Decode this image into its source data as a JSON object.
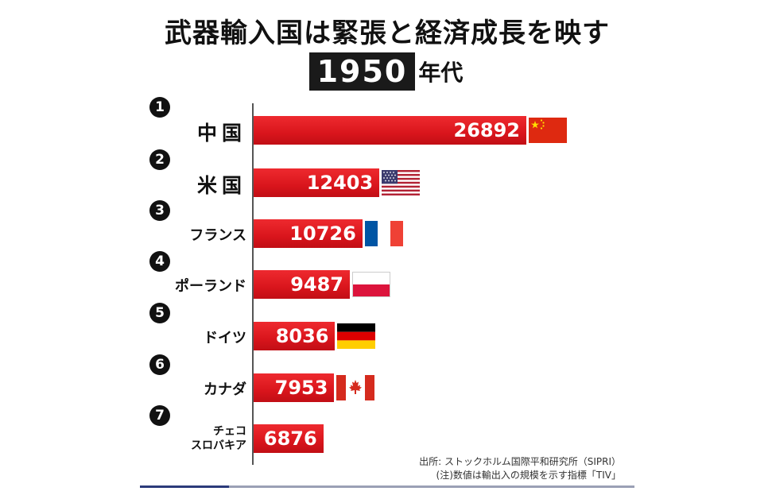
{
  "title": "武器輸入国は緊張と経済成長を映す",
  "decade": {
    "year": "1950",
    "suffix": "年代"
  },
  "colors": {
    "bar": "#d9151c",
    "rank_badge": "#111111",
    "decade_box": "#1a1a1a"
  },
  "chart_data": {
    "type": "bar",
    "orientation": "horizontal",
    "title": "武器輸入国は緊張と経済成長を映す",
    "categories": [
      "中国",
      "米国",
      "フランス",
      "ポーランド",
      "ドイツ",
      "カナダ",
      "チェコスロバキア"
    ],
    "values": [
      26892,
      12403,
      10726,
      9487,
      8036,
      7953,
      6876
    ],
    "xlim": [
      0,
      30000
    ],
    "grid": false,
    "legend": "none"
  },
  "rows": [
    {
      "rank": "1",
      "name": "中国",
      "value": "26892",
      "flag": "china-flag"
    },
    {
      "rank": "2",
      "name": "米国",
      "value": "12403",
      "flag": "usa-flag"
    },
    {
      "rank": "3",
      "name": "フランス",
      "value": "10726",
      "flag": "france-flag"
    },
    {
      "rank": "4",
      "name": "ポーランド",
      "value": "9487",
      "flag": "poland-flag"
    },
    {
      "rank": "5",
      "name": "ドイツ",
      "value": "8036",
      "flag": "germany-flag"
    },
    {
      "rank": "6",
      "name": "カナダ",
      "value": "7953",
      "flag": "canada-flag"
    },
    {
      "rank": "7",
      "name_line1": "チェコ",
      "name_line2": "スロバキア",
      "value": "6876",
      "flag": ""
    }
  ],
  "source": {
    "line1": "出所: ストックホルム国際平和研究所（SIPRI）",
    "line2": "(注)数値は輸出入の規模を示す指標「TIV」"
  }
}
